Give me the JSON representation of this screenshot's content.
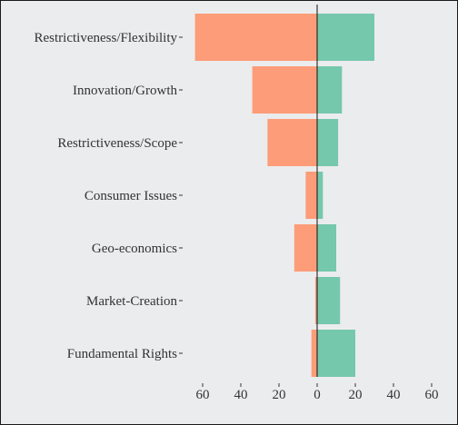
{
  "chart_data": {
    "type": "bar",
    "orientation": "horizontal-diverging",
    "categories": [
      "Restrictiveness/Flexibility",
      "Innovation/Growth",
      "Restrictiveness/Scope",
      "Consumer Issues",
      "Geo-economics",
      "Market-Creation",
      "Fundamental Rights"
    ],
    "series": [
      {
        "side": "left",
        "color": "#fc9c78",
        "values": [
          64,
          34,
          26,
          6,
          12,
          1,
          3
        ]
      },
      {
        "side": "right",
        "color": "#75c8ac",
        "values": [
          30,
          13,
          11,
          3,
          10,
          12,
          20
        ]
      }
    ],
    "xlim": [
      -64,
      64
    ],
    "xticks": [
      -60,
      -40,
      -20,
      0,
      20,
      40,
      60
    ],
    "xtick_labels": [
      "60",
      "40",
      "20",
      "0",
      "20",
      "40",
      "60"
    ],
    "grid": false,
    "background": "#ebeced"
  }
}
